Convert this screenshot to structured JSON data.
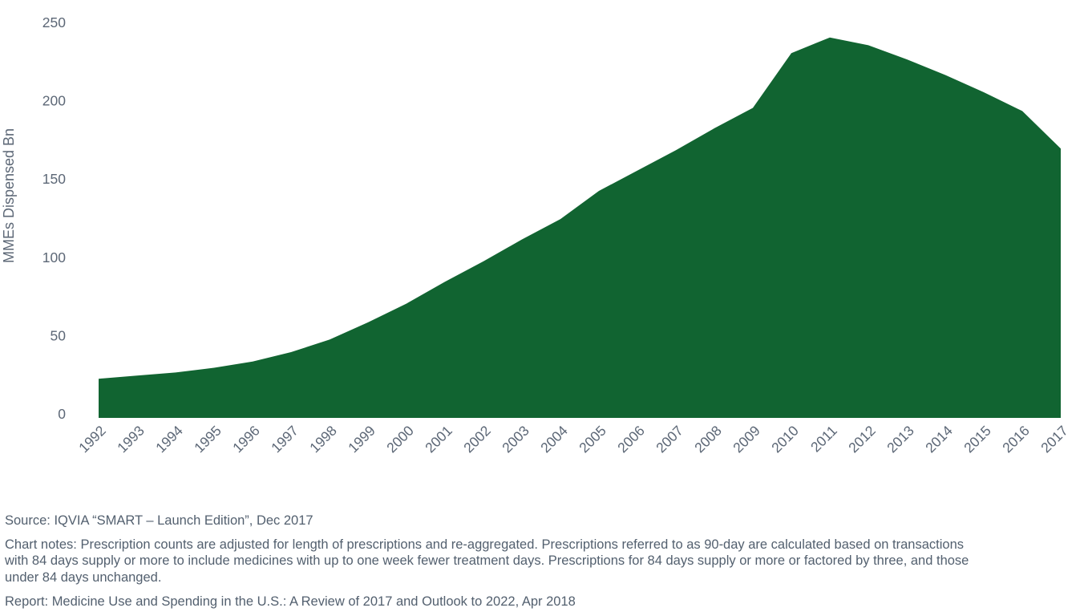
{
  "chart_data": {
    "type": "area",
    "title": "",
    "ylabel": "MMEs Dispensed Bn",
    "xlabel": "",
    "categories": [
      "1992",
      "1993",
      "1994",
      "1995",
      "1996",
      "1997",
      "1998",
      "1999",
      "2000",
      "2001",
      "2002",
      "2003",
      "2004",
      "2005",
      "2006",
      "2007",
      "2008",
      "2009",
      "2010",
      "2011",
      "2012",
      "2013",
      "2014",
      "2015",
      "2016",
      "2017"
    ],
    "values": [
      25,
      27,
      29,
      32,
      36,
      42,
      50,
      61,
      73,
      87,
      100,
      114,
      127,
      145,
      158,
      171,
      185,
      198,
      233,
      243,
      238,
      229,
      219,
      208,
      196,
      172
    ],
    "ylim": [
      0,
      250
    ],
    "yticks": [
      0,
      50,
      100,
      150,
      200,
      250
    ],
    "grid": false,
    "legend": "none",
    "colors": {
      "area": "#116431",
      "axis_text": "#5c6776",
      "footer_text": "#53606f"
    }
  },
  "footer": {
    "source": "Source: IQVIA “SMART – Launch Edition”, Dec 2017",
    "chart_notes_lines": [
      "Chart notes: Prescription counts are adjusted for length of prescriptions and re-aggregated. Prescriptions referred to as 90-day are calculated based on transactions",
      "with 84 days supply or more to include medicines with up to one week fewer treatment days. Prescriptions for 84 days supply or more or factored by three, and those",
      "under 84 days unchanged."
    ],
    "report": "Report: Medicine Use and Spending in the U.S.: A Review of 2017 and Outlook to 2022, Apr 2018"
  }
}
